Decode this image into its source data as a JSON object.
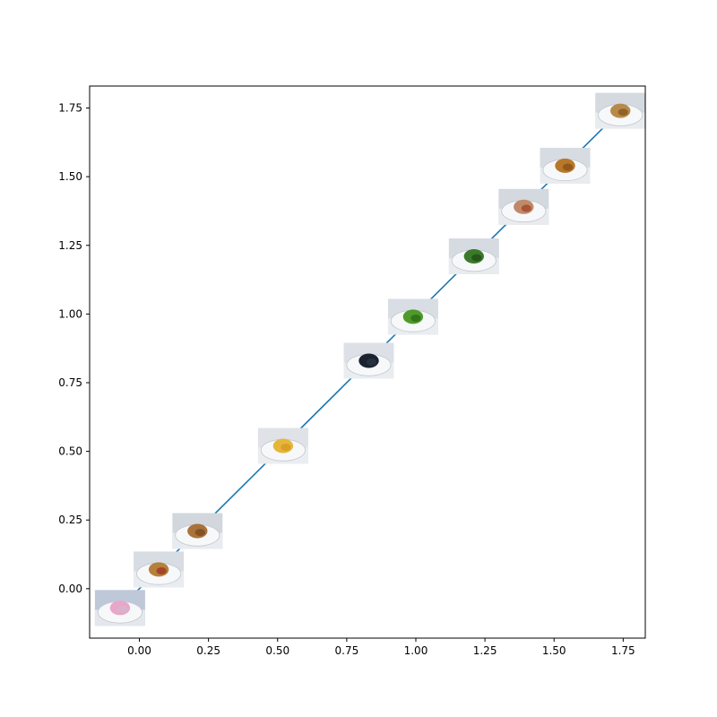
{
  "chart_data": {
    "type": "line",
    "title": "",
    "xlabel": "",
    "ylabel": "",
    "xlim": [
      -0.18,
      1.83
    ],
    "ylim": [
      -0.18,
      1.83
    ],
    "grid": false,
    "x_ticks": [
      0.0,
      0.25,
      0.5,
      0.75,
      1.0,
      1.25,
      1.5,
      1.75
    ],
    "x_tick_labels": [
      "0.00",
      "0.25",
      "0.50",
      "0.75",
      "1.00",
      "1.25",
      "1.50",
      "1.75"
    ],
    "y_ticks": [
      0.0,
      0.25,
      0.5,
      0.75,
      1.0,
      1.25,
      1.5,
      1.75
    ],
    "y_tick_labels": [
      "0.00",
      "0.25",
      "0.50",
      "0.75",
      "1.00",
      "1.25",
      "1.50",
      "1.75"
    ],
    "series": [
      {
        "color": "#1f77b4",
        "x": [
          -0.07,
          0.07,
          0.21,
          0.52,
          0.83,
          0.99,
          1.21,
          1.39,
          1.54,
          1.74
        ],
        "y": [
          -0.07,
          0.07,
          0.21,
          0.52,
          0.83,
          0.99,
          1.21,
          1.39,
          1.54,
          1.74
        ]
      }
    ],
    "image_markers": [
      {
        "icon": "pink-dessert-plate-icon",
        "x": -0.07,
        "y": -0.07,
        "colors": [
          "#e9a6c8",
          "#d6b5c9",
          "#bfc8d8"
        ]
      },
      {
        "icon": "pie-slice-plate-icon",
        "x": 0.07,
        "y": 0.07,
        "colors": [
          "#b5803c",
          "#a23a25",
          "#d8dde4"
        ]
      },
      {
        "icon": "muffin-plate-icon",
        "x": 0.21,
        "y": 0.21,
        "colors": [
          "#a8723a",
          "#7d4e22",
          "#d2d7de"
        ]
      },
      {
        "icon": "soup-plate-icon",
        "x": 0.52,
        "y": 0.52,
        "colors": [
          "#e6b63a",
          "#d59c22",
          "#dfe2e7"
        ]
      },
      {
        "icon": "berries-plate-icon",
        "x": 0.83,
        "y": 0.83,
        "colors": [
          "#1a2230",
          "#2a3340",
          "#dde1e7"
        ]
      },
      {
        "icon": "bell-pepper-plate-icon",
        "x": 0.99,
        "y": 0.99,
        "colors": [
          "#4e9a2a",
          "#2f6f18",
          "#d9dee5"
        ]
      },
      {
        "icon": "broccoli-plate-icon",
        "x": 1.21,
        "y": 1.21,
        "colors": [
          "#3a7a2a",
          "#245018",
          "#d6dbe2"
        ]
      },
      {
        "icon": "pizza-plate-icon",
        "x": 1.39,
        "y": 1.39,
        "colors": [
          "#c08a6a",
          "#a24a2e",
          "#d4d8df"
        ]
      },
      {
        "icon": "nuggets-plate-icon",
        "x": 1.54,
        "y": 1.54,
        "colors": [
          "#b8782a",
          "#8c5418",
          "#d7dbe2"
        ]
      },
      {
        "icon": "fried-rice-plate-icon",
        "x": 1.74,
        "y": 1.74,
        "colors": [
          "#b88a4a",
          "#8a5a22",
          "#d5d9e0"
        ]
      }
    ]
  }
}
